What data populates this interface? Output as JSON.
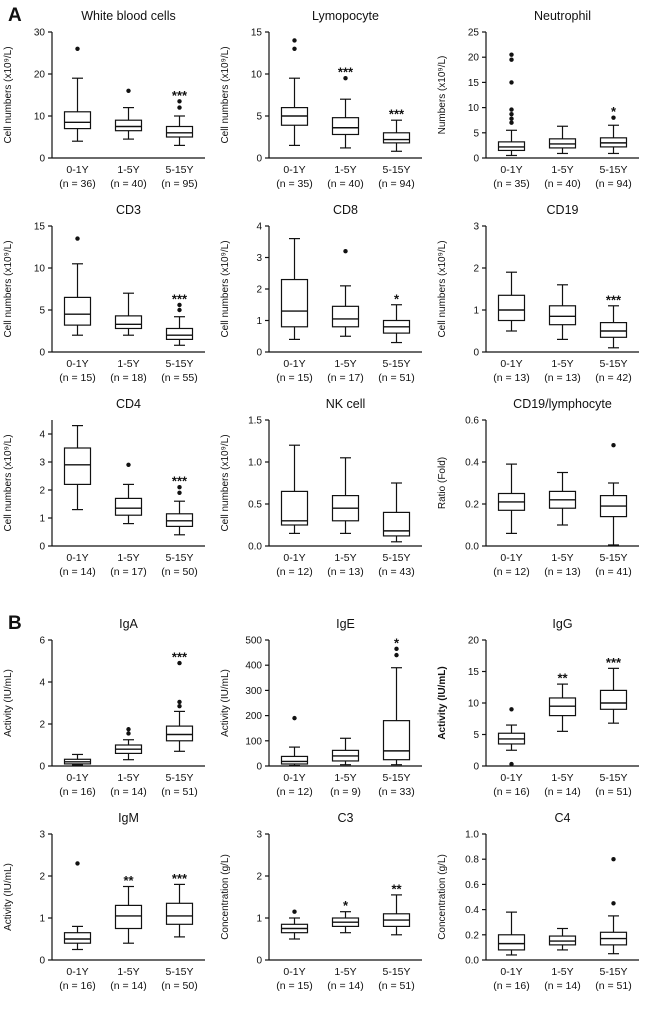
{
  "figure": {
    "panel_a_label": "A",
    "panel_b_label": "B"
  },
  "chart_data": [
    {
      "type": "box",
      "panel": "A",
      "title": "White blood cells",
      "ylabel": "Cell numbers (x10⁹/L)",
      "ylim": [
        0,
        30
      ],
      "yticks": [
        0,
        10,
        20,
        30
      ],
      "ytick_labels": [
        "0",
        "10",
        "20",
        "30"
      ],
      "categories": [
        "0-1Y",
        "1-5Y",
        "5-15Y"
      ],
      "n_labels": [
        "(n = 36)",
        "(n = 40)",
        "(n = 95)"
      ],
      "boxes": [
        {
          "low": 4,
          "q1": 7,
          "median": 8.5,
          "q3": 11,
          "high": 19,
          "outliers": [
            26
          ],
          "sig": ""
        },
        {
          "low": 4.5,
          "q1": 6.5,
          "median": 7.5,
          "q3": 9,
          "high": 12,
          "outliers": [
            16
          ],
          "sig": ""
        },
        {
          "low": 3,
          "q1": 5,
          "median": 6,
          "q3": 7.5,
          "high": 10,
          "outliers": [
            12,
            13.5
          ],
          "sig": "***"
        }
      ]
    },
    {
      "type": "box",
      "panel": "A",
      "title": "Lymopocyte",
      "ylabel": "Cell numbers (x10⁹/L)",
      "ylim": [
        0,
        15
      ],
      "yticks": [
        0,
        5,
        10,
        15
      ],
      "ytick_labels": [
        "0",
        "5",
        "10",
        "15"
      ],
      "categories": [
        "0-1Y",
        "1-5Y",
        "5-15Y"
      ],
      "n_labels": [
        "(n = 35)",
        "(n = 40)",
        "(n = 94)"
      ],
      "boxes": [
        {
          "low": 1.5,
          "q1": 3.9,
          "median": 5,
          "q3": 6,
          "high": 9.5,
          "outliers": [
            13,
            14
          ],
          "sig": ""
        },
        {
          "low": 1.2,
          "q1": 2.8,
          "median": 3.6,
          "q3": 4.8,
          "high": 7,
          "outliers": [
            9.5
          ],
          "sig": "***"
        },
        {
          "low": 0.8,
          "q1": 1.8,
          "median": 2.2,
          "q3": 3,
          "high": 4.5,
          "outliers": [],
          "sig": "***"
        }
      ]
    },
    {
      "type": "box",
      "panel": "A",
      "title": "Neutrophil",
      "ylabel": "Numbers (x10⁹/L)",
      "ylim": [
        0,
        25
      ],
      "yticks": [
        0,
        5,
        10,
        15,
        20,
        25
      ],
      "ytick_labels": [
        "0",
        "5",
        "10",
        "15",
        "20",
        "25"
      ],
      "categories": [
        "0-1Y",
        "1-5Y",
        "5-15Y"
      ],
      "n_labels": [
        "(n = 35)",
        "(n = 40)",
        "(n = 94)"
      ],
      "boxes": [
        {
          "low": 0.5,
          "q1": 1.5,
          "median": 2.2,
          "q3": 3.2,
          "high": 5.5,
          "outliers": [
            7,
            7.8,
            8.7,
            9.6,
            15,
            19.5,
            20.5
          ],
          "sig": ""
        },
        {
          "low": 0.9,
          "q1": 2,
          "median": 2.8,
          "q3": 3.8,
          "high": 6.3,
          "outliers": [],
          "sig": ""
        },
        {
          "low": 0.9,
          "q1": 2.2,
          "median": 3,
          "q3": 4,
          "high": 6.5,
          "outliers": [
            8
          ],
          "sig": "*"
        }
      ]
    },
    {
      "type": "box",
      "panel": "A",
      "title": "CD3",
      "ylabel": "Cell numbers (x10⁹/L)",
      "ylim": [
        0,
        15
      ],
      "yticks": [
        0,
        5,
        10,
        15
      ],
      "ytick_labels": [
        "0",
        "5",
        "10",
        "15"
      ],
      "categories": [
        "0-1Y",
        "1-5Y",
        "5-15Y"
      ],
      "n_labels": [
        "(n = 15)",
        "(n = 18)",
        "(n = 55)"
      ],
      "boxes": [
        {
          "low": 2,
          "q1": 3.2,
          "median": 4.5,
          "q3": 6.5,
          "high": 10.5,
          "outliers": [
            13.5
          ],
          "sig": ""
        },
        {
          "low": 2,
          "q1": 2.8,
          "median": 3.3,
          "q3": 4.3,
          "high": 7,
          "outliers": [],
          "sig": ""
        },
        {
          "low": 0.8,
          "q1": 1.5,
          "median": 2,
          "q3": 2.8,
          "high": 4.2,
          "outliers": [
            5,
            5.6
          ],
          "sig": "***"
        }
      ]
    },
    {
      "type": "box",
      "panel": "A",
      "title": "CD8",
      "ylabel": "Cell numbers (x10⁹/L)",
      "ylim": [
        0,
        4
      ],
      "yticks": [
        0,
        1,
        2,
        3,
        4
      ],
      "ytick_labels": [
        "0",
        "1",
        "2",
        "3",
        "4"
      ],
      "categories": [
        "0-1Y",
        "1-5Y",
        "5-15Y"
      ],
      "n_labels": [
        "(n = 15)",
        "(n = 17)",
        "(n = 51)"
      ],
      "boxes": [
        {
          "low": 0.4,
          "q1": 0.8,
          "median": 1.3,
          "q3": 2.3,
          "high": 3.6,
          "outliers": [],
          "sig": ""
        },
        {
          "low": 0.5,
          "q1": 0.8,
          "median": 1.05,
          "q3": 1.45,
          "high": 2.1,
          "outliers": [
            3.2
          ],
          "sig": ""
        },
        {
          "low": 0.3,
          "q1": 0.6,
          "median": 0.8,
          "q3": 1.0,
          "high": 1.5,
          "outliers": [],
          "sig": "*"
        }
      ]
    },
    {
      "type": "box",
      "panel": "A",
      "title": "CD19",
      "ylabel": "Cell numbers (x10⁹/L)",
      "ylim": [
        0,
        3
      ],
      "yticks": [
        0,
        1,
        2,
        3
      ],
      "ytick_labels": [
        "0",
        "1",
        "2",
        "3"
      ],
      "categories": [
        "0-1Y",
        "1-5Y",
        "5-15Y"
      ],
      "n_labels": [
        "(n = 13)",
        "(n = 13)",
        "(n = 42)"
      ],
      "boxes": [
        {
          "low": 0.5,
          "q1": 0.75,
          "median": 1.0,
          "q3": 1.35,
          "high": 1.9,
          "outliers": [],
          "sig": ""
        },
        {
          "low": 0.3,
          "q1": 0.65,
          "median": 0.85,
          "q3": 1.1,
          "high": 1.6,
          "outliers": [],
          "sig": ""
        },
        {
          "low": 0.1,
          "q1": 0.35,
          "median": 0.5,
          "q3": 0.7,
          "high": 1.1,
          "outliers": [],
          "sig": "***"
        }
      ]
    },
    {
      "type": "box",
      "panel": "A",
      "title": "CD4",
      "ylabel": "Cell numbers (x10⁹/L)",
      "ylim": [
        0,
        4.5
      ],
      "yticks": [
        0,
        1,
        2,
        3,
        4
      ],
      "ytick_labels": [
        "0",
        "1",
        "2",
        "3",
        "4"
      ],
      "categories": [
        "0-1Y",
        "1-5Y",
        "5-15Y"
      ],
      "n_labels": [
        "(n = 14)",
        "(n = 17)",
        "(n = 50)"
      ],
      "boxes": [
        {
          "low": 1.3,
          "q1": 2.2,
          "median": 2.9,
          "q3": 3.5,
          "high": 4.3,
          "outliers": [],
          "sig": ""
        },
        {
          "low": 0.8,
          "q1": 1.1,
          "median": 1.35,
          "q3": 1.7,
          "high": 2.2,
          "outliers": [
            2.9
          ],
          "sig": ""
        },
        {
          "low": 0.4,
          "q1": 0.7,
          "median": 0.9,
          "q3": 1.15,
          "high": 1.6,
          "outliers": [
            1.9,
            2.1
          ],
          "sig": "***"
        }
      ]
    },
    {
      "type": "box",
      "panel": "A",
      "title": "NK cell",
      "ylabel": "Cell numbers (x10⁹/L)",
      "ylim": [
        0,
        1.5
      ],
      "yticks": [
        0,
        0.5,
        1,
        1.5
      ],
      "ytick_labels": [
        "0.0",
        "0.5",
        "1.0",
        "1.5"
      ],
      "categories": [
        "0-1Y",
        "1-5Y",
        "5-15Y"
      ],
      "n_labels": [
        "(n = 12)",
        "(n = 13)",
        "(n = 43)"
      ],
      "boxes": [
        {
          "low": 0.15,
          "q1": 0.25,
          "median": 0.3,
          "q3": 0.65,
          "high": 1.2,
          "outliers": [],
          "sig": ""
        },
        {
          "low": 0.15,
          "q1": 0.3,
          "median": 0.45,
          "q3": 0.6,
          "high": 1.05,
          "outliers": [],
          "sig": ""
        },
        {
          "low": 0.05,
          "q1": 0.12,
          "median": 0.18,
          "q3": 0.4,
          "high": 0.75,
          "outliers": [],
          "sig": ""
        }
      ]
    },
    {
      "type": "box",
      "panel": "A",
      "title": "CD19/lymphocyte",
      "ylabel": "Ratio (Fold)",
      "ylim": [
        0,
        0.6
      ],
      "yticks": [
        0,
        0.2,
        0.4,
        0.6
      ],
      "ytick_labels": [
        "0.0",
        "0.2",
        "0.4",
        "0.6"
      ],
      "categories": [
        "0-1Y",
        "1-5Y",
        "5-15Y"
      ],
      "n_labels": [
        "(n = 12)",
        "(n = 13)",
        "(n = 41)"
      ],
      "boxes": [
        {
          "low": 0.06,
          "q1": 0.17,
          "median": 0.21,
          "q3": 0.25,
          "high": 0.39,
          "outliers": [],
          "sig": ""
        },
        {
          "low": 0.1,
          "q1": 0.18,
          "median": 0.22,
          "q3": 0.26,
          "high": 0.35,
          "outliers": [],
          "sig": ""
        },
        {
          "low": 0.005,
          "q1": 0.14,
          "median": 0.19,
          "q3": 0.24,
          "high": 0.3,
          "outliers": [
            0.48
          ],
          "sig": ""
        }
      ]
    },
    {
      "type": "box",
      "panel": "B",
      "title": "IgA",
      "ylabel": "Activity (IU/mL)",
      "ylim": [
        0,
        6
      ],
      "yticks": [
        0,
        2,
        4,
        6
      ],
      "ytick_labels": [
        "0",
        "2",
        "4",
        "6"
      ],
      "categories": [
        "0-1Y",
        "1-5Y",
        "5-15Y"
      ],
      "n_labels": [
        "(n = 16)",
        "(n = 14)",
        "(n = 51)"
      ],
      "boxes": [
        {
          "low": 0.05,
          "q1": 0.1,
          "median": 0.2,
          "q3": 0.32,
          "high": 0.55,
          "outliers": [],
          "sig": ""
        },
        {
          "low": 0.3,
          "q1": 0.6,
          "median": 0.8,
          "q3": 1.0,
          "high": 1.25,
          "outliers": [
            1.55,
            1.75
          ],
          "sig": ""
        },
        {
          "low": 0.7,
          "q1": 1.2,
          "median": 1.5,
          "q3": 1.9,
          "high": 2.6,
          "outliers": [
            2.85,
            3.05,
            4.9
          ],
          "sig": "***"
        }
      ]
    },
    {
      "type": "box",
      "panel": "B",
      "title": "IgE",
      "ylabel": "Activity (IU/mL)",
      "ylim": [
        0,
        500
      ],
      "yticks": [
        0,
        100,
        200,
        300,
        400,
        500
      ],
      "ytick_labels": [
        "0",
        "100",
        "200",
        "300",
        "400",
        "500"
      ],
      "categories": [
        "0-1Y",
        "1-5Y",
        "5-15Y"
      ],
      "n_labels": [
        "(n = 12)",
        "(n = 9)",
        "(n = 33)"
      ],
      "boxes": [
        {
          "low": 2,
          "q1": 8,
          "median": 18,
          "q3": 38,
          "high": 75,
          "outliers": [
            190
          ],
          "sig": ""
        },
        {
          "low": 5,
          "q1": 20,
          "median": 40,
          "q3": 62,
          "high": 110,
          "outliers": [],
          "sig": ""
        },
        {
          "low": 5,
          "q1": 25,
          "median": 60,
          "q3": 180,
          "high": 390,
          "outliers": [
            440,
            465
          ],
          "sig": "*"
        }
      ]
    },
    {
      "type": "box",
      "panel": "B",
      "title": "IgG",
      "ylabel": "Activity (IU/mL)",
      "ylabel_bold": true,
      "ylim": [
        0,
        20
      ],
      "yticks": [
        0,
        5,
        10,
        15,
        20
      ],
      "ytick_labels": [
        "0",
        "5",
        "10",
        "15",
        "20"
      ],
      "categories": [
        "0-1Y",
        "1-5Y",
        "5-15Y"
      ],
      "n_labels": [
        "(n = 16)",
        "(n = 14)",
        "(n = 51)"
      ],
      "boxes": [
        {
          "low": 2.5,
          "q1": 3.5,
          "median": 4.3,
          "q3": 5.2,
          "high": 6.5,
          "outliers": [
            0.3,
            9
          ],
          "sig": ""
        },
        {
          "low": 5.5,
          "q1": 8,
          "median": 9.5,
          "q3": 10.8,
          "high": 13,
          "outliers": [],
          "sig": "**"
        },
        {
          "low": 6.8,
          "q1": 9,
          "median": 10,
          "q3": 12,
          "high": 15.5,
          "outliers": [],
          "sig": "***"
        }
      ]
    },
    {
      "type": "box",
      "panel": "B",
      "title": "IgM",
      "ylabel": "Activity (IU/mL)",
      "ylim": [
        0,
        3
      ],
      "yticks": [
        0,
        1,
        2,
        3
      ],
      "ytick_labels": [
        "0",
        "1",
        "2",
        "3"
      ],
      "categories": [
        "0-1Y",
        "1-5Y",
        "5-15Y"
      ],
      "n_labels": [
        "(n = 16)",
        "(n = 14)",
        "(n = 50)"
      ],
      "boxes": [
        {
          "low": 0.25,
          "q1": 0.4,
          "median": 0.5,
          "q3": 0.65,
          "high": 0.8,
          "outliers": [
            2.3
          ],
          "sig": ""
        },
        {
          "low": 0.4,
          "q1": 0.75,
          "median": 1.05,
          "q3": 1.3,
          "high": 1.75,
          "outliers": [],
          "sig": "**"
        },
        {
          "low": 0.55,
          "q1": 0.85,
          "median": 1.05,
          "q3": 1.35,
          "high": 1.8,
          "outliers": [],
          "sig": "***"
        }
      ]
    },
    {
      "type": "box",
      "panel": "B",
      "title": "C3",
      "ylabel": "Concentration (g/L)",
      "ylim": [
        0,
        3
      ],
      "yticks": [
        0,
        1,
        2,
        3
      ],
      "ytick_labels": [
        "0",
        "1",
        "2",
        "3"
      ],
      "categories": [
        "0-1Y",
        "1-5Y",
        "5-15Y"
      ],
      "n_labels": [
        "(n = 15)",
        "(n = 14)",
        "(n = 51)"
      ],
      "boxes": [
        {
          "low": 0.5,
          "q1": 0.65,
          "median": 0.75,
          "q3": 0.85,
          "high": 1.0,
          "outliers": [
            1.15
          ],
          "sig": ""
        },
        {
          "low": 0.65,
          "q1": 0.8,
          "median": 0.9,
          "q3": 1.0,
          "high": 1.15,
          "outliers": [],
          "sig": "*"
        },
        {
          "low": 0.6,
          "q1": 0.8,
          "median": 0.95,
          "q3": 1.1,
          "high": 1.55,
          "outliers": [],
          "sig": "**"
        }
      ]
    },
    {
      "type": "box",
      "panel": "B",
      "title": "C4",
      "ylabel": "Concentration (g/L)",
      "ylim": [
        0,
        1
      ],
      "yticks": [
        0,
        0.2,
        0.4,
        0.6,
        0.8,
        1
      ],
      "ytick_labels": [
        "0.0",
        "0.2",
        "0.4",
        "0.6",
        "0.8",
        "1.0"
      ],
      "categories": [
        "0-1Y",
        "1-5Y",
        "5-15Y"
      ],
      "n_labels": [
        "(n = 16)",
        "(n = 14)",
        "(n = 51)"
      ],
      "boxes": [
        {
          "low": 0.04,
          "q1": 0.08,
          "median": 0.13,
          "q3": 0.2,
          "high": 0.38,
          "outliers": [],
          "sig": ""
        },
        {
          "low": 0.08,
          "q1": 0.12,
          "median": 0.15,
          "q3": 0.19,
          "high": 0.25,
          "outliers": [],
          "sig": ""
        },
        {
          "low": 0.05,
          "q1": 0.12,
          "median": 0.17,
          "q3": 0.22,
          "high": 0.35,
          "outliers": [
            0.45,
            0.8
          ],
          "sig": ""
        }
      ]
    }
  ]
}
